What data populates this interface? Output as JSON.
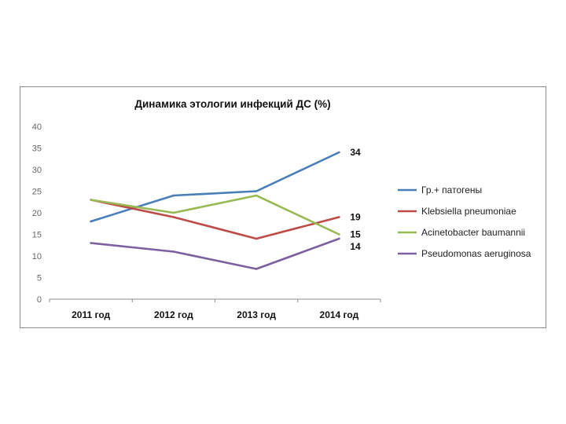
{
  "chart_data": {
    "type": "line",
    "title": "Динамика этологии инфекций ДС (%)",
    "categories": [
      "2011 год",
      "2012 год",
      "2013 год",
      "2014 год"
    ],
    "ylim": [
      0,
      40
    ],
    "yticks": [
      0,
      5,
      10,
      15,
      20,
      25,
      30,
      35,
      40
    ],
    "grid": false,
    "legend_position": "right",
    "series": [
      {
        "name": "Гр.+ патогены",
        "color": "#4a7ebb",
        "values": [
          18,
          24,
          25,
          34
        ],
        "end_label": "34"
      },
      {
        "name": "Klebsiella pneumoniae",
        "color": "#be4b48",
        "values": [
          23,
          19,
          14,
          19
        ],
        "end_label": "19"
      },
      {
        "name": "Acinetobacter baumannii",
        "color": "#98b954",
        "values": [
          23,
          20,
          24,
          15
        ],
        "end_label": "15"
      },
      {
        "name": "Pseudomonas aeruginosa",
        "color": "#7d60a0",
        "values": [
          13,
          11,
          7,
          14
        ],
        "end_label": "14"
      }
    ]
  }
}
